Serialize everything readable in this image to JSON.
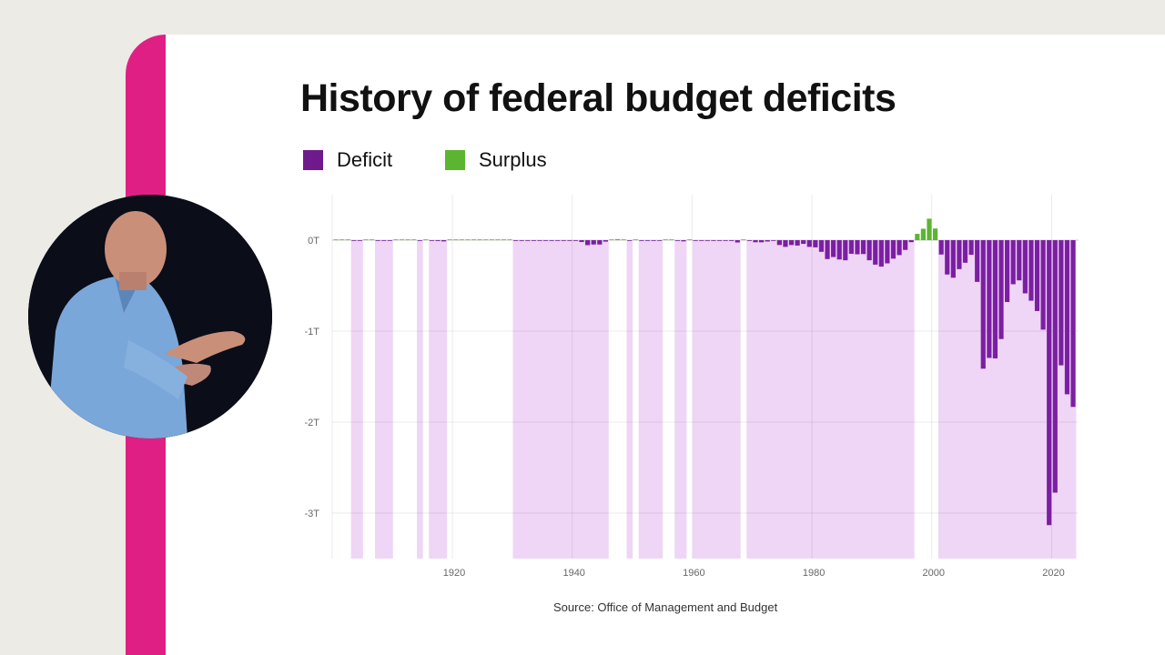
{
  "chart_data": {
    "type": "bar",
    "title": "History of federal budget deficits",
    "legend": [
      {
        "label": "Deficit",
        "color": "#6f1a8c"
      },
      {
        "label": "Surplus",
        "color": "#5cb531"
      }
    ],
    "legend_placement": "top-left",
    "unit": "billions USD",
    "y_tick_labels": [
      "0T",
      "-1T",
      "-2T",
      "-3T"
    ],
    "y_ticks": [
      0,
      -1000,
      -2000,
      -3000
    ],
    "ylim": [
      -3500,
      500
    ],
    "x_tick_labels": [
      "1920",
      "1940",
      "1960",
      "1980",
      "2000",
      "2020"
    ],
    "xlim": [
      1901,
      2024
    ],
    "grid": true,
    "shading": "deficit years shaded light purple",
    "shade_color": "#efd5f6",
    "deficit_color": "#7b1fa2",
    "surplus_color": "#5cb531",
    "years": [
      1901,
      1902,
      1903,
      1904,
      1905,
      1906,
      1907,
      1908,
      1909,
      1910,
      1911,
      1912,
      1913,
      1914,
      1915,
      1916,
      1917,
      1918,
      1919,
      1920,
      1921,
      1922,
      1923,
      1924,
      1925,
      1926,
      1927,
      1928,
      1929,
      1930,
      1931,
      1932,
      1933,
      1934,
      1935,
      1936,
      1937,
      1938,
      1939,
      1940,
      1941,
      1942,
      1943,
      1944,
      1945,
      1946,
      1947,
      1948,
      1949,
      1950,
      1951,
      1952,
      1953,
      1954,
      1955,
      1956,
      1957,
      1958,
      1959,
      1960,
      1961,
      1962,
      1963,
      1964,
      1965,
      1966,
      1967,
      1968,
      1969,
      1970,
      1971,
      1972,
      1973,
      1974,
      1975,
      1976,
      1977,
      1978,
      1979,
      1980,
      1981,
      1982,
      1983,
      1984,
      1985,
      1986,
      1987,
      1988,
      1989,
      1990,
      1991,
      1992,
      1993,
      1994,
      1995,
      1996,
      1997,
      1998,
      1999,
      2000,
      2001,
      2002,
      2003,
      2004,
      2005,
      2006,
      2007,
      2008,
      2009,
      2010,
      2011,
      2012,
      2013,
      2014,
      2015,
      2016,
      2017,
      2018,
      2019,
      2020,
      2021,
      2022,
      2023,
      2024
    ],
    "values": [
      0.06,
      0.08,
      0.05,
      -0.04,
      -0.02,
      0.03,
      0.09,
      -0.06,
      -0.09,
      -0.02,
      0.01,
      0.003,
      0.001,
      0.001,
      -0.06,
      0.05,
      -0.85,
      -9.0,
      -13.4,
      0.29,
      0.5,
      0.7,
      0.7,
      1.0,
      0.7,
      0.9,
      1.2,
      0.9,
      0.7,
      0.7,
      -0.46,
      -2.7,
      -2.6,
      -3.6,
      -2.8,
      -4.3,
      -2.2,
      -0.1,
      -2.8,
      -2.9,
      -4.9,
      -20.5,
      -54.6,
      -47.6,
      -47.6,
      -15.9,
      4.0,
      11.8,
      0.6,
      -3.1,
      6.1,
      -1.5,
      -6.5,
      -1.2,
      -3.0,
      3.9,
      3.4,
      -2.8,
      -12.8,
      0.3,
      -3.3,
      -7.1,
      -4.8,
      -5.9,
      -1.4,
      -3.7,
      -8.6,
      -25.2,
      3.2,
      -2.8,
      -23.0,
      -23.4,
      -14.9,
      -6.1,
      -53.2,
      -73.7,
      -53.7,
      -59.2,
      -40.7,
      -73.8,
      -79.0,
      -128.0,
      -207.8,
      -185.4,
      -212.3,
      -221.2,
      -149.7,
      -155.2,
      -152.6,
      -221.0,
      -269.2,
      -290.3,
      -255.1,
      -203.2,
      -164.0,
      -107.4,
      -21.9,
      69.3,
      125.6,
      236.2,
      128.2,
      -157.8,
      -377.6,
      -412.7,
      -318.3,
      -248.2,
      -160.7,
      -458.6,
      -1412.7,
      -1294.4,
      -1299.6,
      -1087.0,
      -679.8,
      -484.6,
      -441.9,
      -584.7,
      -665.4,
      -779.1,
      -983.6,
      -3132.4,
      -2775.3,
      -1375.9,
      -1694.0,
      -1833.0
    ],
    "source": "Source: Office of Management and Budget"
  }
}
